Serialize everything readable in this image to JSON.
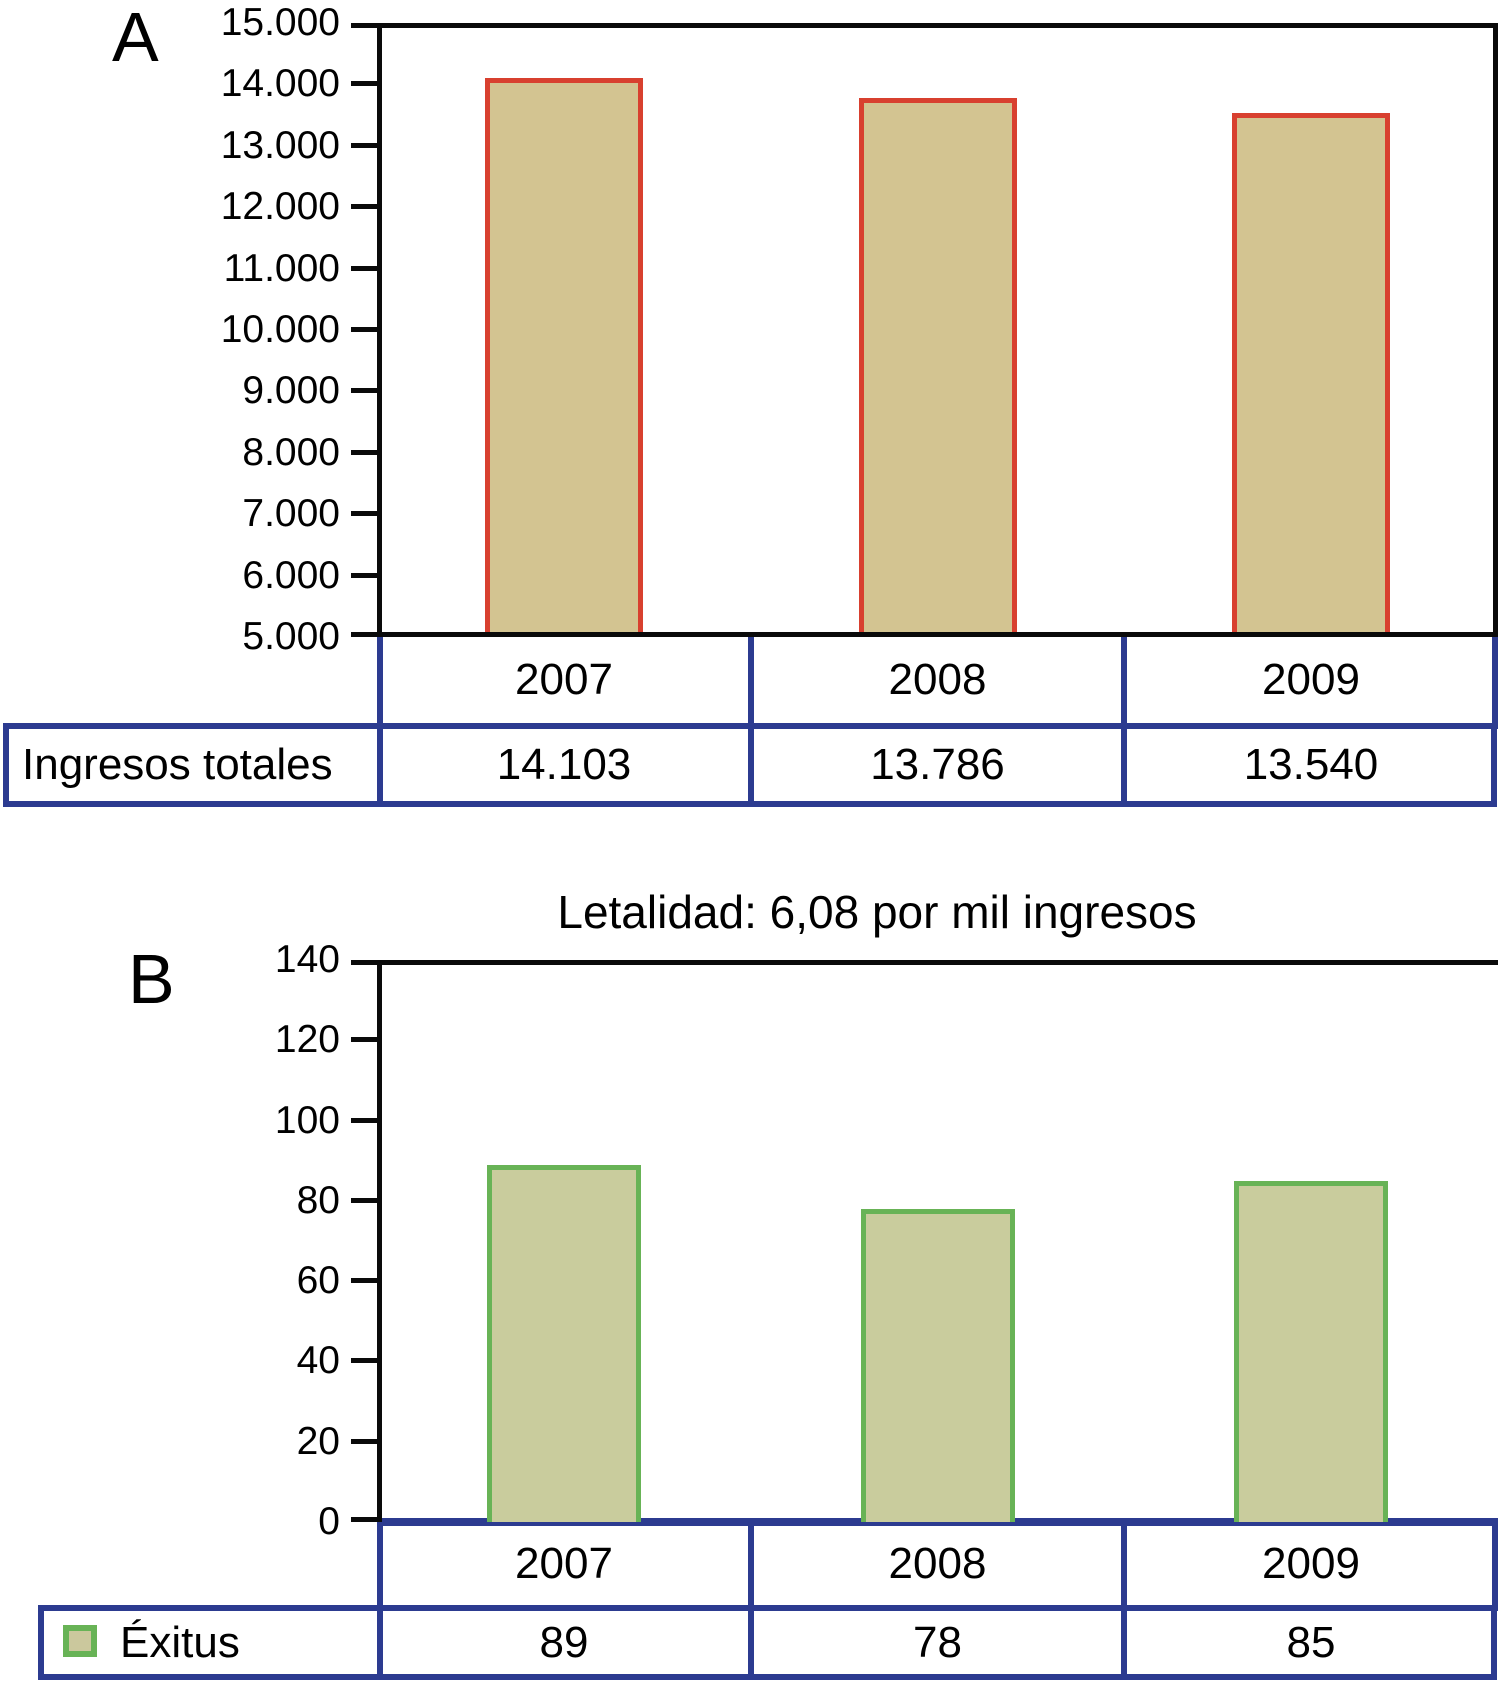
{
  "panels": {
    "a_label": "A",
    "b_label": "B"
  },
  "chart_data": [
    {
      "type": "bar",
      "panel": "A",
      "categories": [
        "2007",
        "2008",
        "2009"
      ],
      "values": [
        14103,
        13786,
        13540
      ],
      "value_labels": [
        "14.103",
        "13.786",
        "13.540"
      ],
      "series_label": "Ingresos totales",
      "ylim": [
        5000,
        15000
      ],
      "ytick_step": 1000,
      "ytick_labels": [
        "15.000",
        "14.000",
        "13.000",
        "12.000",
        "11.000",
        "10.000",
        "9.000",
        "8.000",
        "7.000",
        "6.000",
        "5.000"
      ],
      "bar_fill": "#d3c491",
      "bar_border": "#d8402f",
      "legend": false,
      "grid": false,
      "legend_position": "none"
    },
    {
      "type": "bar",
      "panel": "B",
      "title": "Letalidad: 6,08 por mil ingresos",
      "categories": [
        "2007",
        "2008",
        "2009"
      ],
      "values": [
        89,
        78,
        85
      ],
      "value_labels": [
        "89",
        "78",
        "85"
      ],
      "series_label": "Éxitus",
      "ylim": [
        0,
        140
      ],
      "ytick_step": 20,
      "ytick_labels": [
        "140",
        "120",
        "100",
        "80",
        "60",
        "40",
        "20",
        "0"
      ],
      "bar_fill": "#c9cc9d",
      "bar_border": "#68b356",
      "legend": true,
      "legend_swatch_fill": "#cbc89d",
      "legend_swatch_border": "#68b356",
      "grid": false,
      "legend_position": "bottom-left-table"
    }
  ],
  "colors": {
    "table_border": "#2c3b90",
    "axis": "#0a0a0a",
    "background": "#ffffff"
  }
}
